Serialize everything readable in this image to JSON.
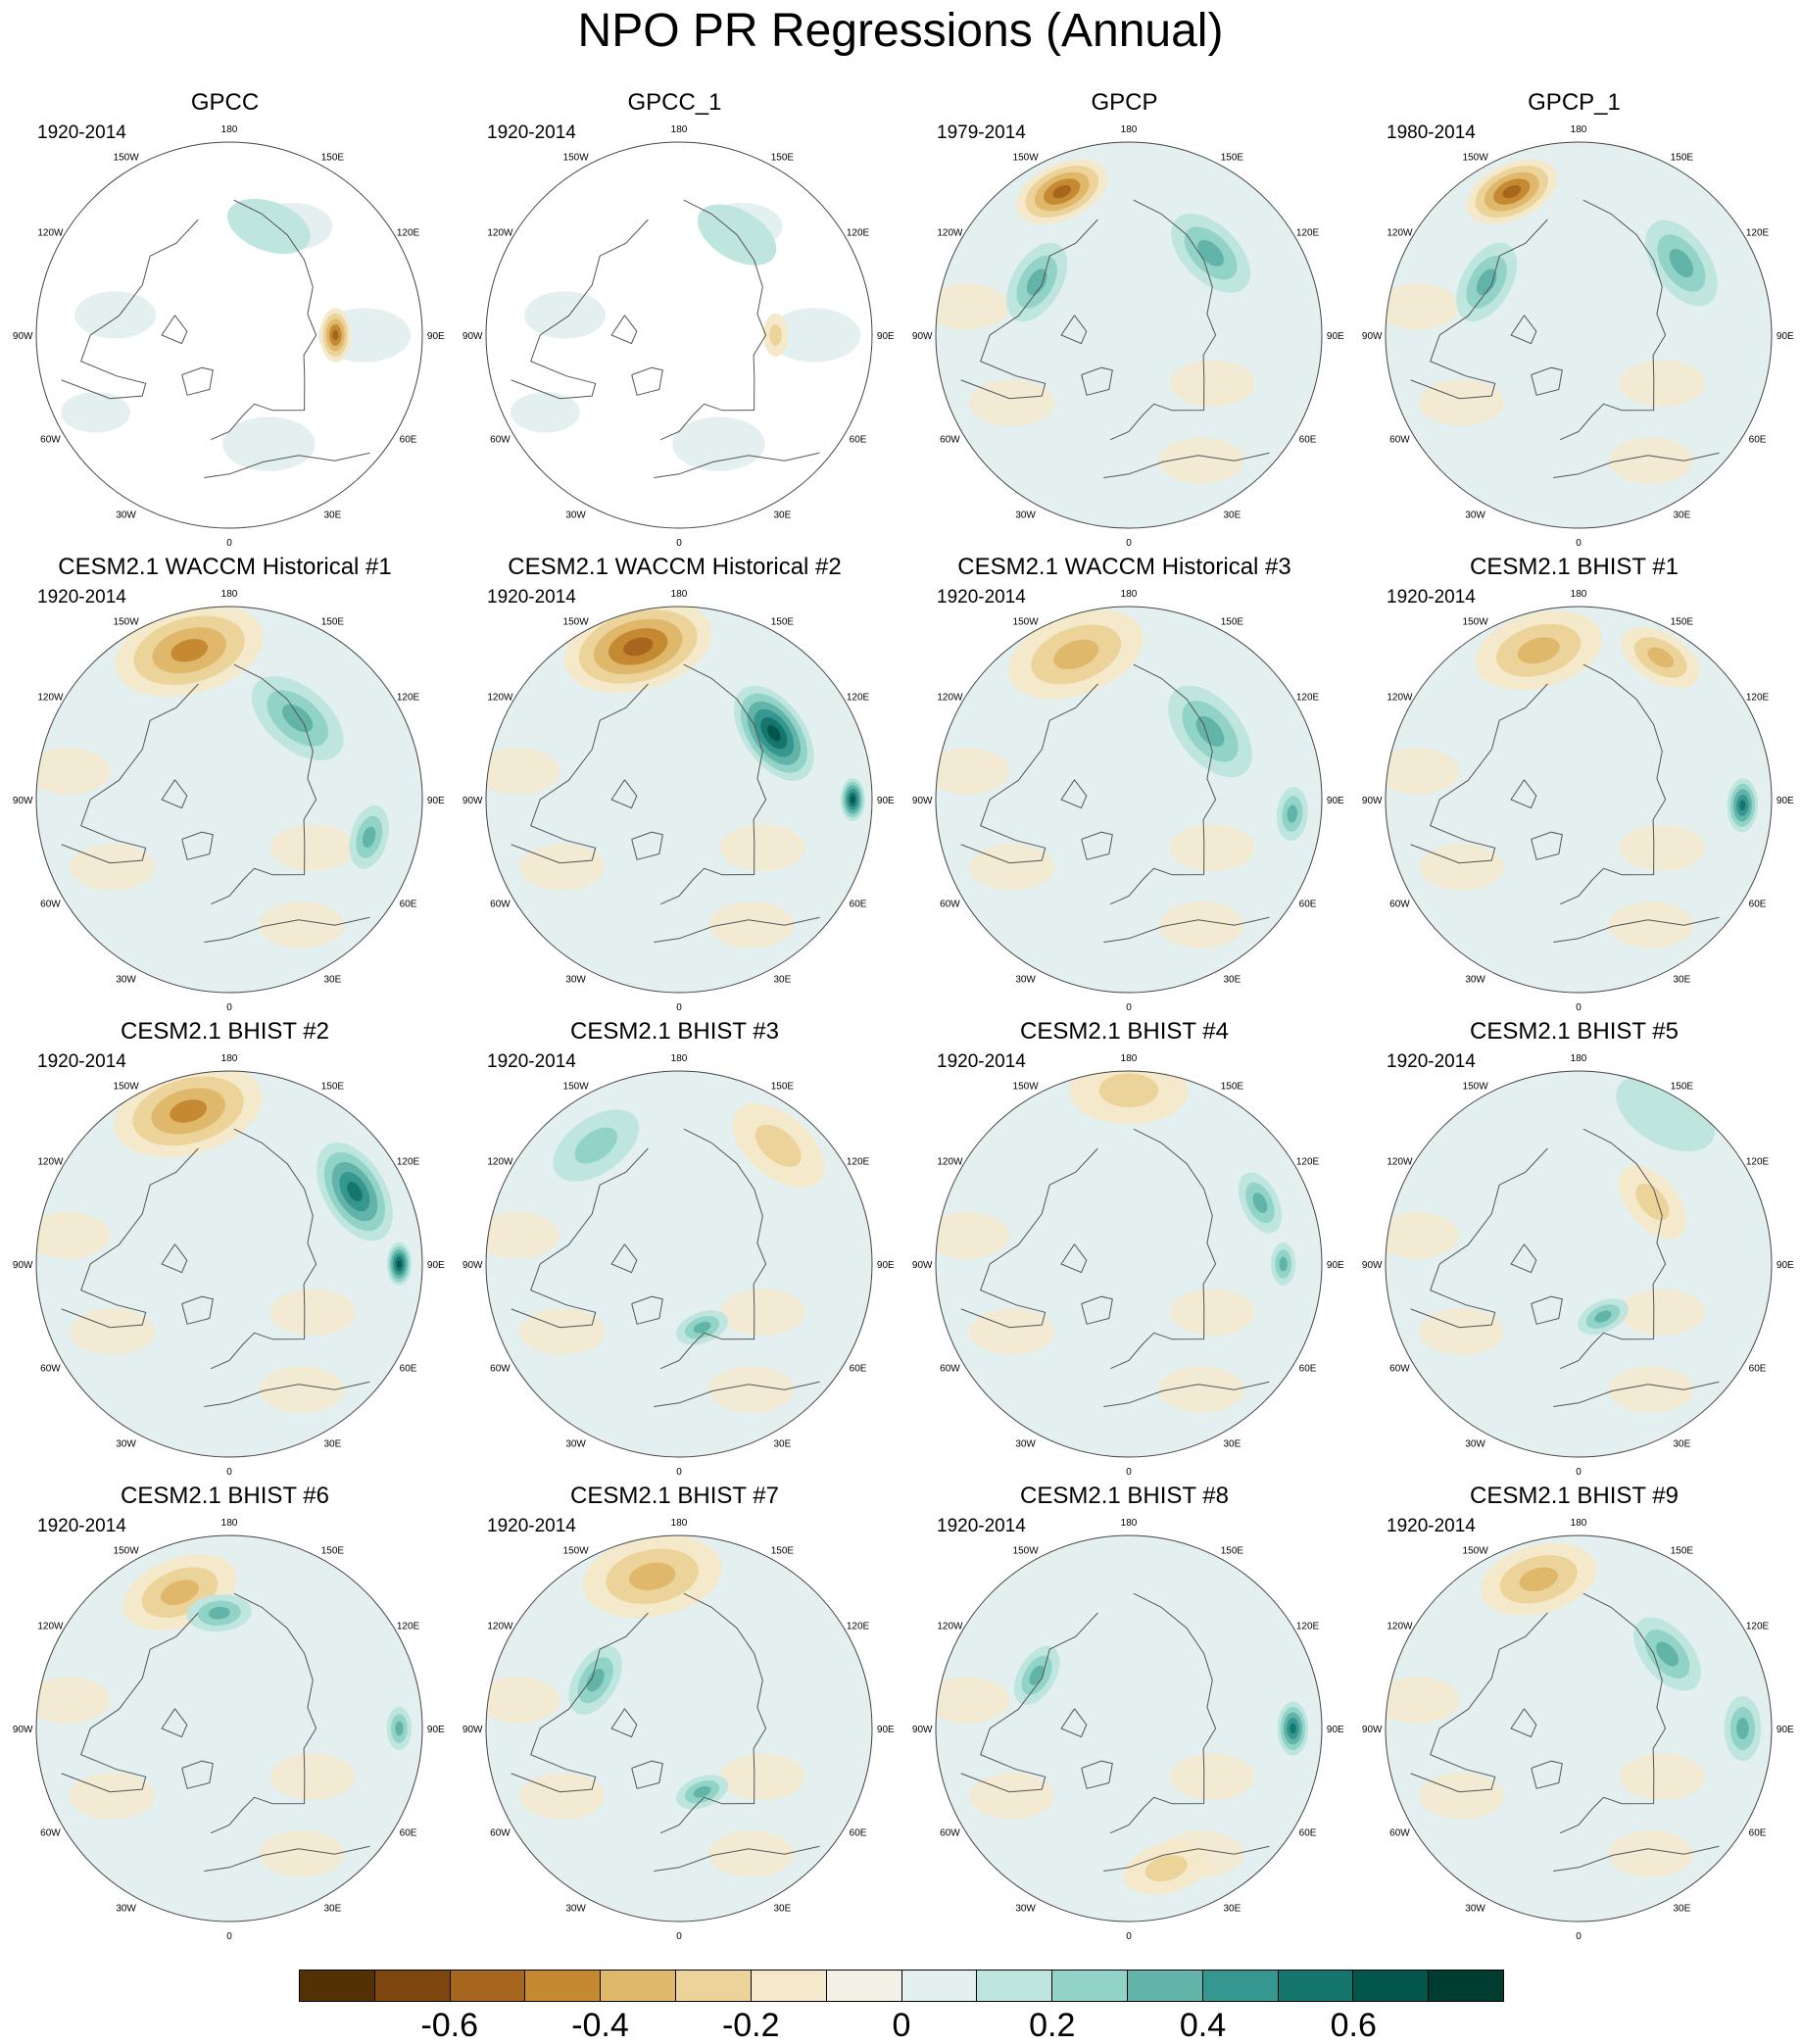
{
  "title": "NPO PR Regressions (Annual)",
  "longitude_labels": [
    "180",
    "150E",
    "120E",
    "90E",
    "60E",
    "30E",
    "0",
    "30W",
    "60W",
    "90W",
    "120W",
    "150W"
  ],
  "panels": [
    {
      "title": "GPCC",
      "period": "1920-2014",
      "land_only": true,
      "anomalies": [
        {
          "lon": 90,
          "r": 0.55,
          "value": -0.5,
          "size": 0.5
        },
        {
          "lon": 160,
          "r": 0.6,
          "value": 0.15,
          "size": 0.8
        }
      ]
    },
    {
      "title": "GPCC_1",
      "period": "1920-2014",
      "land_only": true,
      "anomalies": [
        {
          "lon": 90,
          "r": 0.5,
          "value": -0.2,
          "size": 0.4
        },
        {
          "lon": 150,
          "r": 0.6,
          "value": 0.1,
          "size": 0.8
        }
      ]
    },
    {
      "title": "GPCP",
      "period": "1979-2014",
      "land_only": false,
      "anomalies": [
        {
          "lon": -155,
          "r": 0.82,
          "value": -0.45,
          "size": 0.9
        },
        {
          "lon": 135,
          "r": 0.6,
          "value": 0.3,
          "size": 0.9
        },
        {
          "lon": -120,
          "r": 0.55,
          "value": 0.25,
          "size": 0.8
        }
      ]
    },
    {
      "title": "GPCP_1",
      "period": "1980-2014",
      "land_only": false,
      "anomalies": [
        {
          "lon": -155,
          "r": 0.82,
          "value": -0.45,
          "size": 0.9
        },
        {
          "lon": 125,
          "r": 0.65,
          "value": 0.35,
          "size": 0.9
        },
        {
          "lon": -120,
          "r": 0.55,
          "value": 0.25,
          "size": 0.8
        }
      ]
    },
    {
      "title": "CESM2.1 WACCM Historical #1",
      "period": "1920-2014",
      "land_only": false,
      "anomalies": [
        {
          "lon": -165,
          "r": 0.8,
          "value": -0.4,
          "size": 1.4
        },
        {
          "lon": 140,
          "r": 0.55,
          "value": 0.35,
          "size": 1.0
        },
        {
          "lon": 75,
          "r": 0.75,
          "value": 0.3,
          "size": 0.6
        }
      ]
    },
    {
      "title": "CESM2.1 WACCM Historical #2",
      "period": "1920-2014",
      "land_only": false,
      "anomalies": [
        {
          "lon": -165,
          "r": 0.82,
          "value": -0.45,
          "size": 1.4
        },
        {
          "lon": 125,
          "r": 0.6,
          "value": 0.55,
          "size": 1.0
        },
        {
          "lon": 90,
          "r": 0.9,
          "value": 0.6,
          "size": 0.4
        }
      ]
    },
    {
      "title": "CESM2.1 WACCM Historical #3",
      "period": "1920-2014",
      "land_only": false,
      "anomalies": [
        {
          "lon": -160,
          "r": 0.8,
          "value": -0.35,
          "size": 1.3
        },
        {
          "lon": 130,
          "r": 0.55,
          "value": 0.3,
          "size": 1.0
        },
        {
          "lon": 85,
          "r": 0.85,
          "value": 0.3,
          "size": 0.5
        }
      ]
    },
    {
      "title": "CESM2.1 BHIST #1",
      "period": "1920-2014",
      "land_only": false,
      "anomalies": [
        {
          "lon": -165,
          "r": 0.8,
          "value": -0.25,
          "size": 1.2
        },
        {
          "lon": 150,
          "r": 0.85,
          "value": -0.25,
          "size": 0.8
        },
        {
          "lon": 88,
          "r": 0.85,
          "value": 0.5,
          "size": 0.5
        }
      ]
    },
    {
      "title": "CESM2.1 BHIST #2",
      "period": "1920-2014",
      "land_only": false,
      "anomalies": [
        {
          "lon": -165,
          "r": 0.82,
          "value": -0.4,
          "size": 1.4
        },
        {
          "lon": 120,
          "r": 0.75,
          "value": 0.45,
          "size": 1.0
        },
        {
          "lon": 90,
          "r": 0.88,
          "value": 0.55,
          "size": 0.4
        }
      ]
    },
    {
      "title": "CESM2.1 BHIST #3",
      "period": "1920-2014",
      "land_only": false,
      "anomalies": [
        {
          "lon": -145,
          "r": 0.75,
          "value": 0.2,
          "size": 0.9
        },
        {
          "lon": 140,
          "r": 0.8,
          "value": -0.2,
          "size": 1.0
        },
        {
          "lon": 20,
          "r": 0.35,
          "value": 0.3,
          "size": 0.5
        }
      ]
    },
    {
      "title": "CESM2.1 BHIST #4",
      "period": "1920-2014",
      "land_only": false,
      "anomalies": [
        {
          "lon": 180,
          "r": 0.9,
          "value": -0.2,
          "size": 1.1
        },
        {
          "lon": 115,
          "r": 0.75,
          "value": 0.3,
          "size": 0.6
        },
        {
          "lon": 90,
          "r": 0.8,
          "value": 0.35,
          "size": 0.4
        }
      ]
    },
    {
      "title": "CESM2.1 BHIST #5",
      "period": "1920-2014",
      "land_only": false,
      "anomalies": [
        {
          "lon": 150,
          "r": 0.9,
          "value": 0.15,
          "size": 1.0
        },
        {
          "lon": 130,
          "r": 0.5,
          "value": -0.2,
          "size": 0.8
        },
        {
          "lon": 25,
          "r": 0.3,
          "value": 0.35,
          "size": 0.5
        }
      ]
    },
    {
      "title": "CESM2.1 BHIST #6",
      "period": "1920-2014",
      "land_only": false,
      "anomalies": [
        {
          "lon": -160,
          "r": 0.75,
          "value": -0.35,
          "size": 1.1
        },
        {
          "lon": -175,
          "r": 0.6,
          "value": 0.25,
          "size": 0.6
        },
        {
          "lon": 90,
          "r": 0.88,
          "value": 0.35,
          "size": 0.4
        }
      ]
    },
    {
      "title": "CESM2.1 BHIST #7",
      "period": "1920-2014",
      "land_only": false,
      "anomalies": [
        {
          "lon": -170,
          "r": 0.8,
          "value": -0.3,
          "size": 1.3
        },
        {
          "lon": -120,
          "r": 0.5,
          "value": 0.3,
          "size": 0.7
        },
        {
          "lon": 20,
          "r": 0.35,
          "value": 0.3,
          "size": 0.5
        }
      ]
    },
    {
      "title": "CESM2.1 BHIST #8",
      "period": "1920-2014",
      "land_only": false,
      "anomalies": [
        {
          "lon": -120,
          "r": 0.55,
          "value": 0.35,
          "size": 0.6
        },
        {
          "lon": 90,
          "r": 0.85,
          "value": 0.45,
          "size": 0.5
        },
        {
          "lon": 15,
          "r": 0.75,
          "value": -0.2,
          "size": 0.8
        }
      ]
    },
    {
      "title": "CESM2.1 BHIST #9",
      "period": "1920-2014",
      "land_only": false,
      "anomalies": [
        {
          "lon": -165,
          "r": 0.8,
          "value": -0.35,
          "size": 1.1
        },
        {
          "lon": 130,
          "r": 0.6,
          "value": 0.3,
          "size": 0.8
        },
        {
          "lon": 90,
          "r": 0.85,
          "value": 0.35,
          "size": 0.6
        }
      ]
    }
  ],
  "colorbar": {
    "colors": [
      "#543005",
      "#7f4710",
      "#a6661d",
      "#c58932",
      "#dfb86b",
      "#ecd39a",
      "#f5e9cb",
      "#f3f0e6",
      "#e3f0ef",
      "#bfe5df",
      "#92d3c8",
      "#62b3a8",
      "#35978f",
      "#15766d",
      "#03564b",
      "#003c30"
    ],
    "levels": [
      -0.7,
      -0.6,
      -0.5,
      -0.4,
      -0.3,
      -0.2,
      -0.1,
      0,
      0.1,
      0.2,
      0.3,
      0.4,
      0.5,
      0.6,
      0.7
    ],
    "tick_labels": [
      "-0.6",
      "-0.4",
      "-0.2",
      "0",
      "0.2",
      "0.4",
      "0.6"
    ],
    "tick_values": [
      -0.6,
      -0.4,
      -0.2,
      0,
      0.2,
      0.4,
      0.6
    ]
  }
}
